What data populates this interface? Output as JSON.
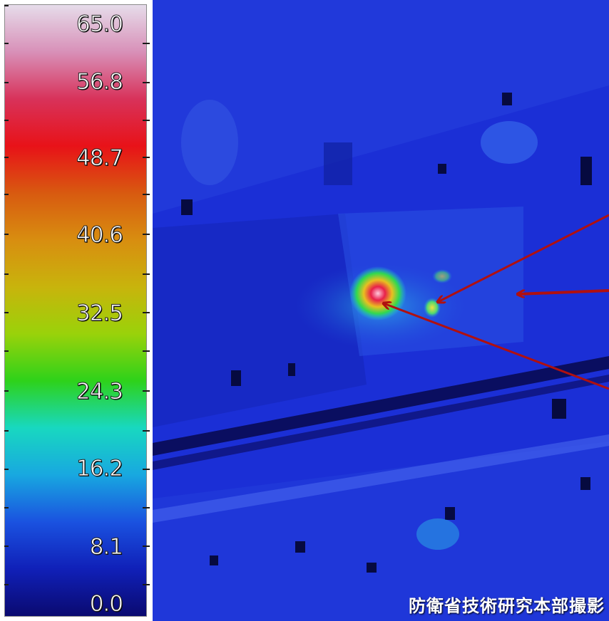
{
  "scale": {
    "labels": [
      "65.0",
      "56.8",
      "48.7",
      "40.6",
      "32.5",
      "24.3",
      "16.2",
      "8.1",
      "0.0"
    ],
    "colors": [
      "#e6dcea",
      "#d890b8",
      "#d8325a",
      "#e81218",
      "#d85a10",
      "#d88e10",
      "#c8b40c",
      "#9ad20a",
      "#2ed21a",
      "#18d8c0",
      "#18a8e0",
      "#1a52e0",
      "#1020b8",
      "#0a0a70"
    ]
  },
  "image": {
    "credit": "防衛省技術研究本部撮影",
    "arrow_color": "#b01010"
  }
}
